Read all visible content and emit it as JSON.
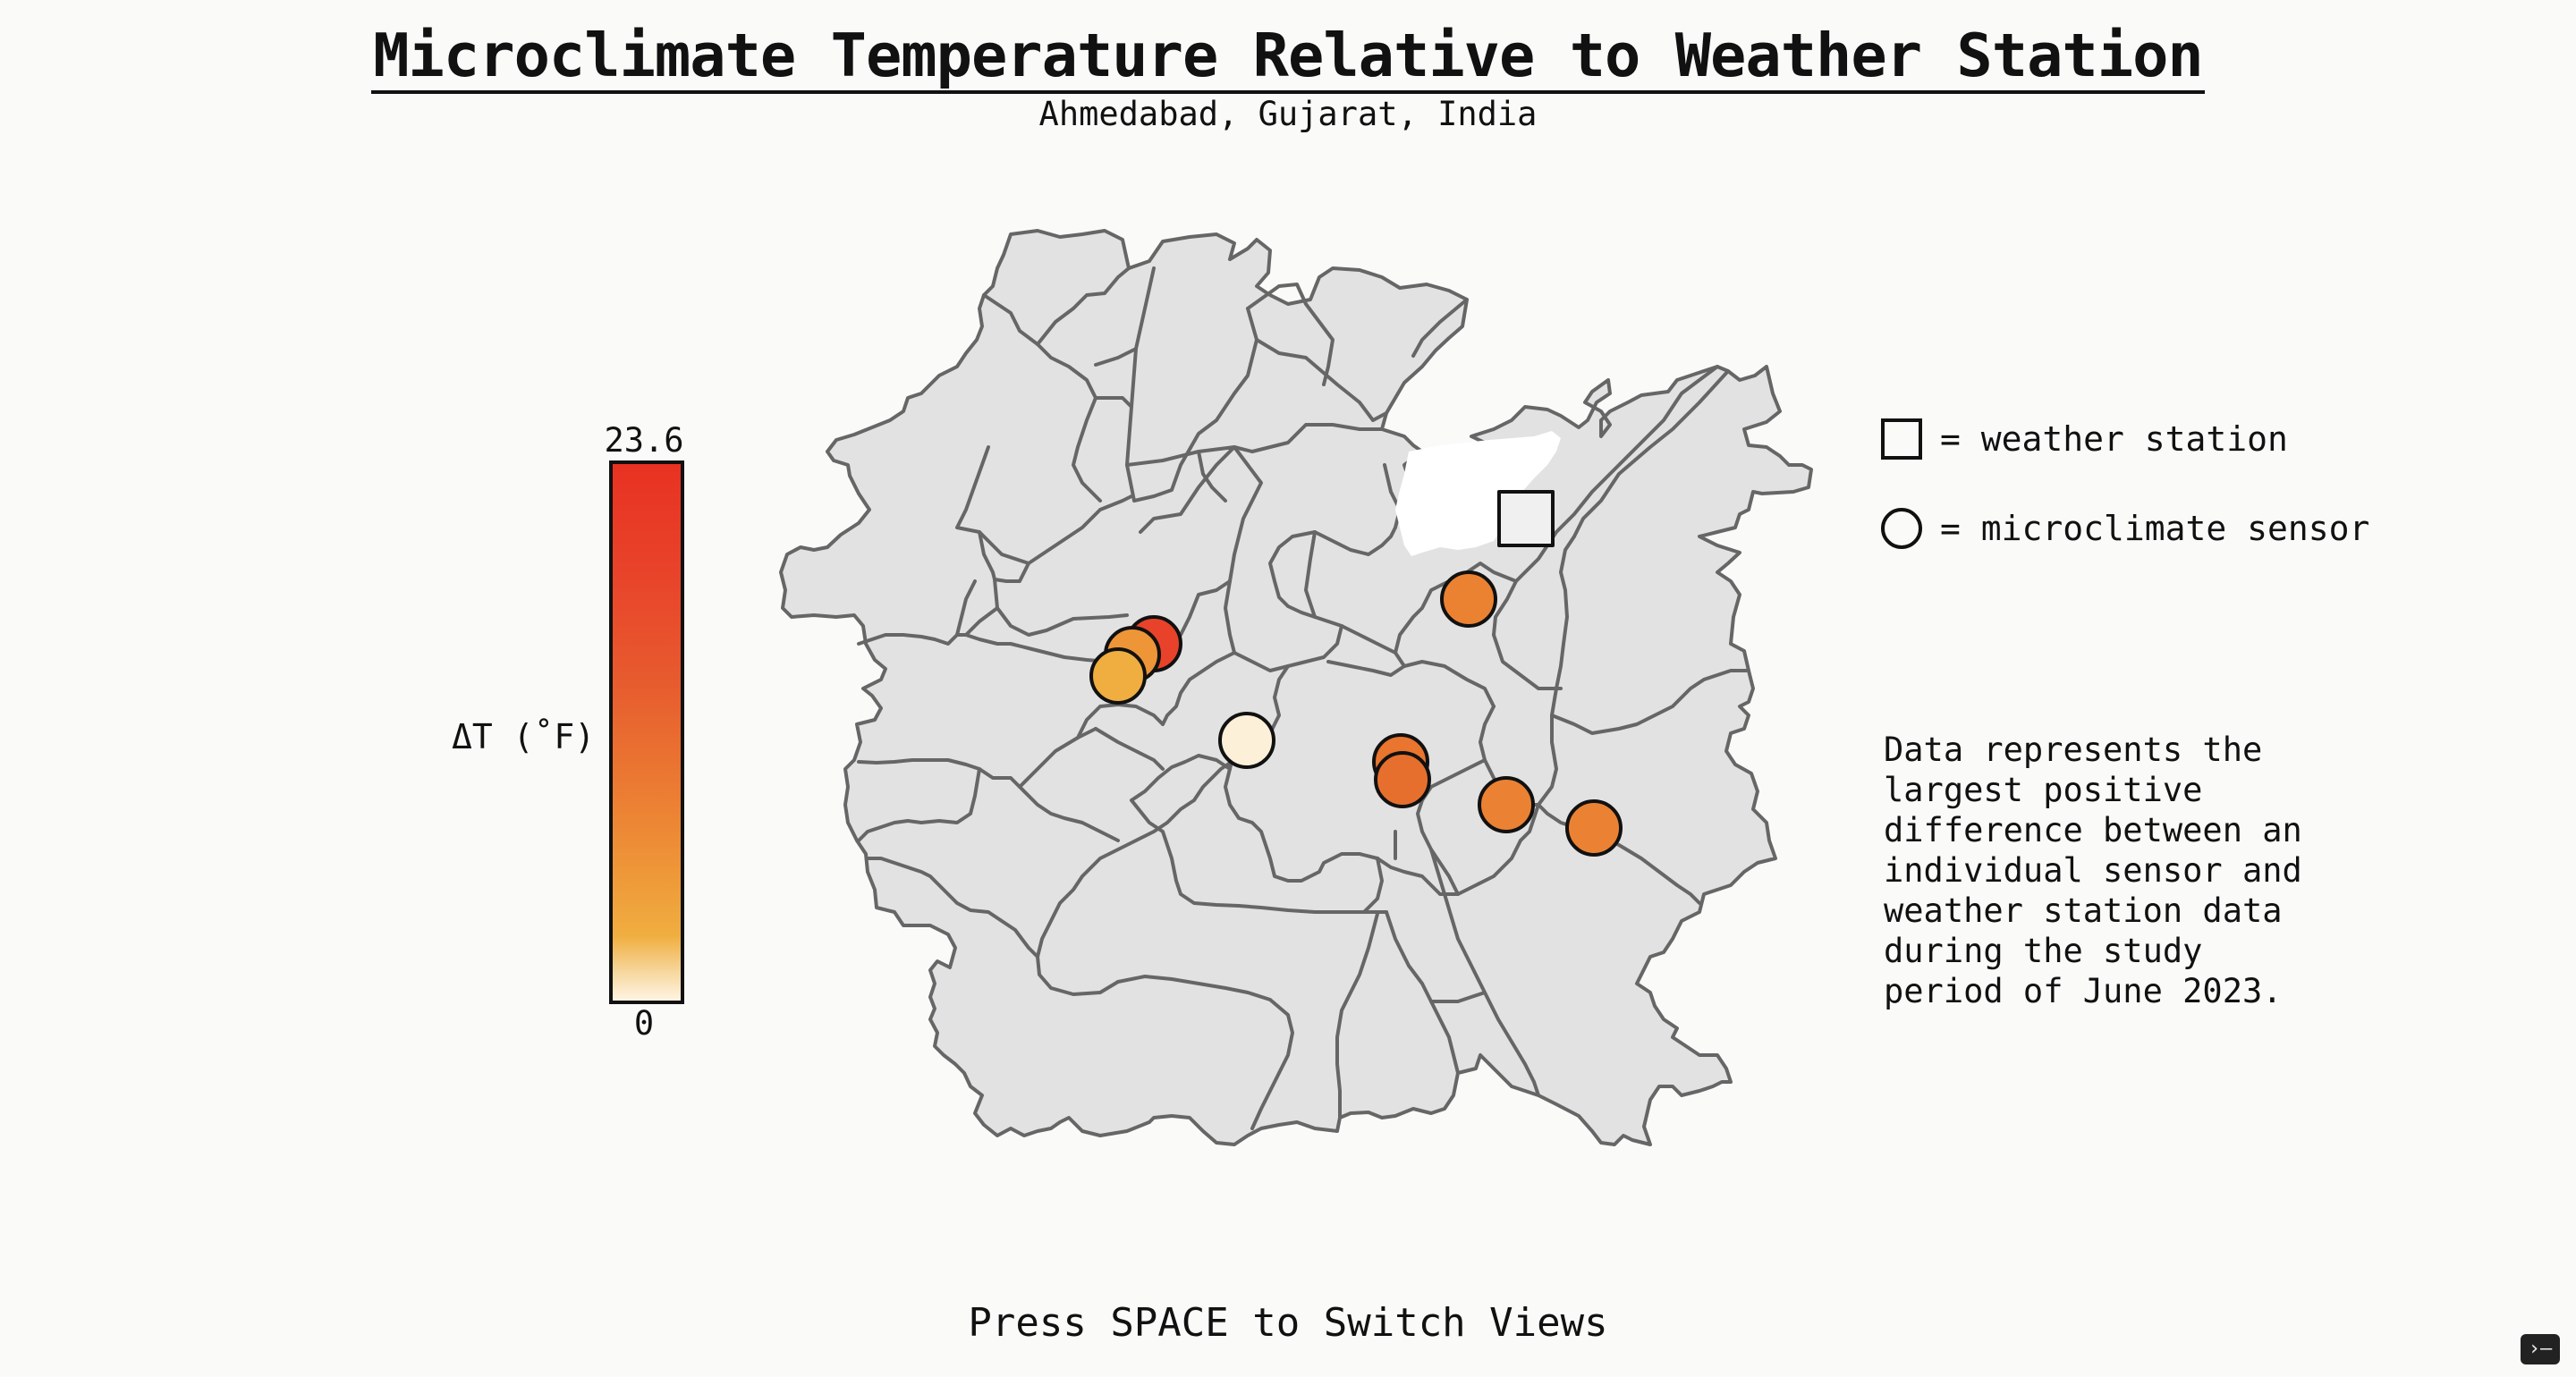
{
  "title": "Microclimate Temperature Relative to Weather Station",
  "subtitle": "Ahmedabad, Gujarat, India",
  "colorbar": {
    "label": "ΔT (˚F)",
    "max_label": "23.6",
    "min_label": "0",
    "max": 23.6,
    "min": 0,
    "stops": [
      "#fff4e3",
      "#f0ae40",
      "#ee9538",
      "#eb7a32",
      "#e75a2e",
      "#e8432a",
      "#e83222"
    ]
  },
  "legend": {
    "weather_station": "= weather station",
    "microclimate_sensor": "= microclimate sensor"
  },
  "note": "Data represents the\nlargest positive\ndifference between an\nindividual sensor and\nweather station data\nduring the study\nperiod of June 2023.",
  "footer": "Press SPACE to Switch Views",
  "terminal_icon": "terminal-icon",
  "colors": {
    "map_fill": "#e2e2e2",
    "map_stroke": "#666666",
    "map_hole": "#ffffff",
    "station_fill": "#f0f0f0"
  },
  "sensors": [
    {
      "id": "s1",
      "delta_t": 23.6,
      "color": "#e8432a"
    },
    {
      "id": "s2",
      "delta_t": 15.5,
      "color": "#ee9538"
    },
    {
      "id": "s3",
      "delta_t": 13.0,
      "color": "#f0ae40"
    },
    {
      "id": "s4",
      "delta_t": 0.5,
      "color": "#fdf0d8"
    },
    {
      "id": "s5",
      "delta_t": 17.0,
      "color": "#eb8232"
    },
    {
      "id": "s6",
      "delta_t": 18.5,
      "color": "#e9752f"
    },
    {
      "id": "s7",
      "delta_t": 19.0,
      "color": "#e76f2e"
    },
    {
      "id": "s8",
      "delta_t": 17.0,
      "color": "#eb8233"
    },
    {
      "id": "s9",
      "delta_t": 17.0,
      "color": "#eb8233"
    }
  ]
}
